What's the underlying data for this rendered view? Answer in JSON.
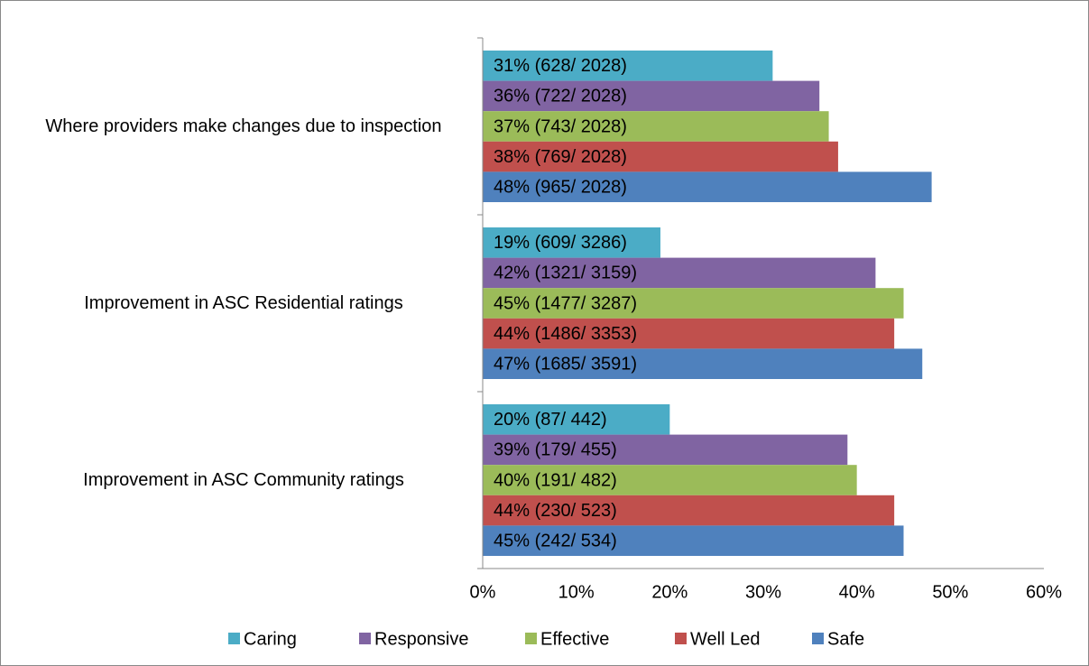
{
  "chart_data": {
    "type": "hbar",
    "categories": [
      "Where providers make changes due to inspection",
      "Improvement in ASC Residential ratings",
      "Improvement in ASC Community ratings"
    ],
    "series": [
      {
        "name": "Caring",
        "color": "#4bacc6",
        "values": [
          31,
          19,
          20
        ],
        "value_labels": [
          "31% (628/ 2028)",
          "19% (609/ 3286)",
          "20% (87/ 442)"
        ]
      },
      {
        "name": "Responsive",
        "color": "#8064a2",
        "values": [
          36,
          42,
          39
        ],
        "value_labels": [
          "36% (722/ 2028)",
          "42% (1321/ 3159)",
          "39% (179/ 455)"
        ]
      },
      {
        "name": "Effective",
        "color": "#9bbb59",
        "values": [
          37,
          45,
          40
        ],
        "value_labels": [
          "37% (743/ 2028)",
          "45% (1477/ 3287)",
          "40% (191/ 482)"
        ]
      },
      {
        "name": "Well Led",
        "color": "#c0504d",
        "values": [
          38,
          44,
          44
        ],
        "value_labels": [
          "38% (769/ 2028)",
          "44% (1486/ 3353)",
          "44% (230/ 523)"
        ]
      },
      {
        "name": "Safe",
        "color": "#4f81bd",
        "values": [
          48,
          47,
          45
        ],
        "value_labels": [
          "48% (965/ 2028)",
          "47% (1685/ 3591)",
          "45% (242/ 534)"
        ]
      }
    ],
    "xlim": [
      0,
      60
    ],
    "xticks": [
      {
        "value": 0,
        "label": "0%"
      },
      {
        "value": 10,
        "label": "10%"
      },
      {
        "value": 20,
        "label": "20%"
      },
      {
        "value": 30,
        "label": "30%"
      },
      {
        "value": 40,
        "label": "40%"
      },
      {
        "value": 50,
        "label": "50%"
      },
      {
        "value": 60,
        "label": "60%"
      }
    ],
    "legend": "bottom"
  }
}
